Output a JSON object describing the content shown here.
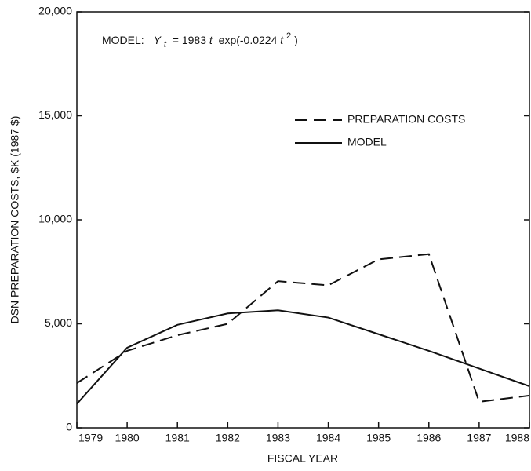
{
  "chart_data": {
    "type": "line",
    "annotation_parts": [
      "MODEL:",
      "Y",
      "t",
      "= 1983",
      "t",
      "exp(-0.0224",
      "t",
      "2",
      ")"
    ],
    "x_label": "FISCAL YEAR",
    "y_label": "DSN PREPARATION COSTS, $K (1987 $)",
    "x": [
      1979,
      1980,
      1981,
      1982,
      1983,
      1984,
      1985,
      1986,
      1987,
      1988
    ],
    "xlim": [
      1979,
      1988
    ],
    "xticks": [
      1979,
      1980,
      1981,
      1982,
      1983,
      1984,
      1985,
      1986,
      1987,
      1988
    ],
    "ylim": [
      0,
      20000
    ],
    "yticks": [
      0,
      {
        "value": 5000,
        "label": "5,000"
      },
      {
        "value": 10000,
        "label": "10,000"
      },
      {
        "value": 15000,
        "label": "15,000"
      },
      {
        "value": 20000,
        "label": "20,000"
      }
    ],
    "legend": "upper right",
    "series": [
      {
        "name": "PREPARATION COSTS",
        "color": "#111111",
        "dashed": true,
        "values": [
          2150,
          3700,
          4450,
          5000,
          7050,
          6850,
          8100,
          8350,
          1250,
          1550
        ]
      },
      {
        "name": "MODEL",
        "color": "#111111",
        "dashed": false,
        "values": [
          1150,
          3850,
          4950,
          5500,
          5650,
          5300,
          4500,
          3700,
          2850,
          2000
        ]
      }
    ]
  }
}
